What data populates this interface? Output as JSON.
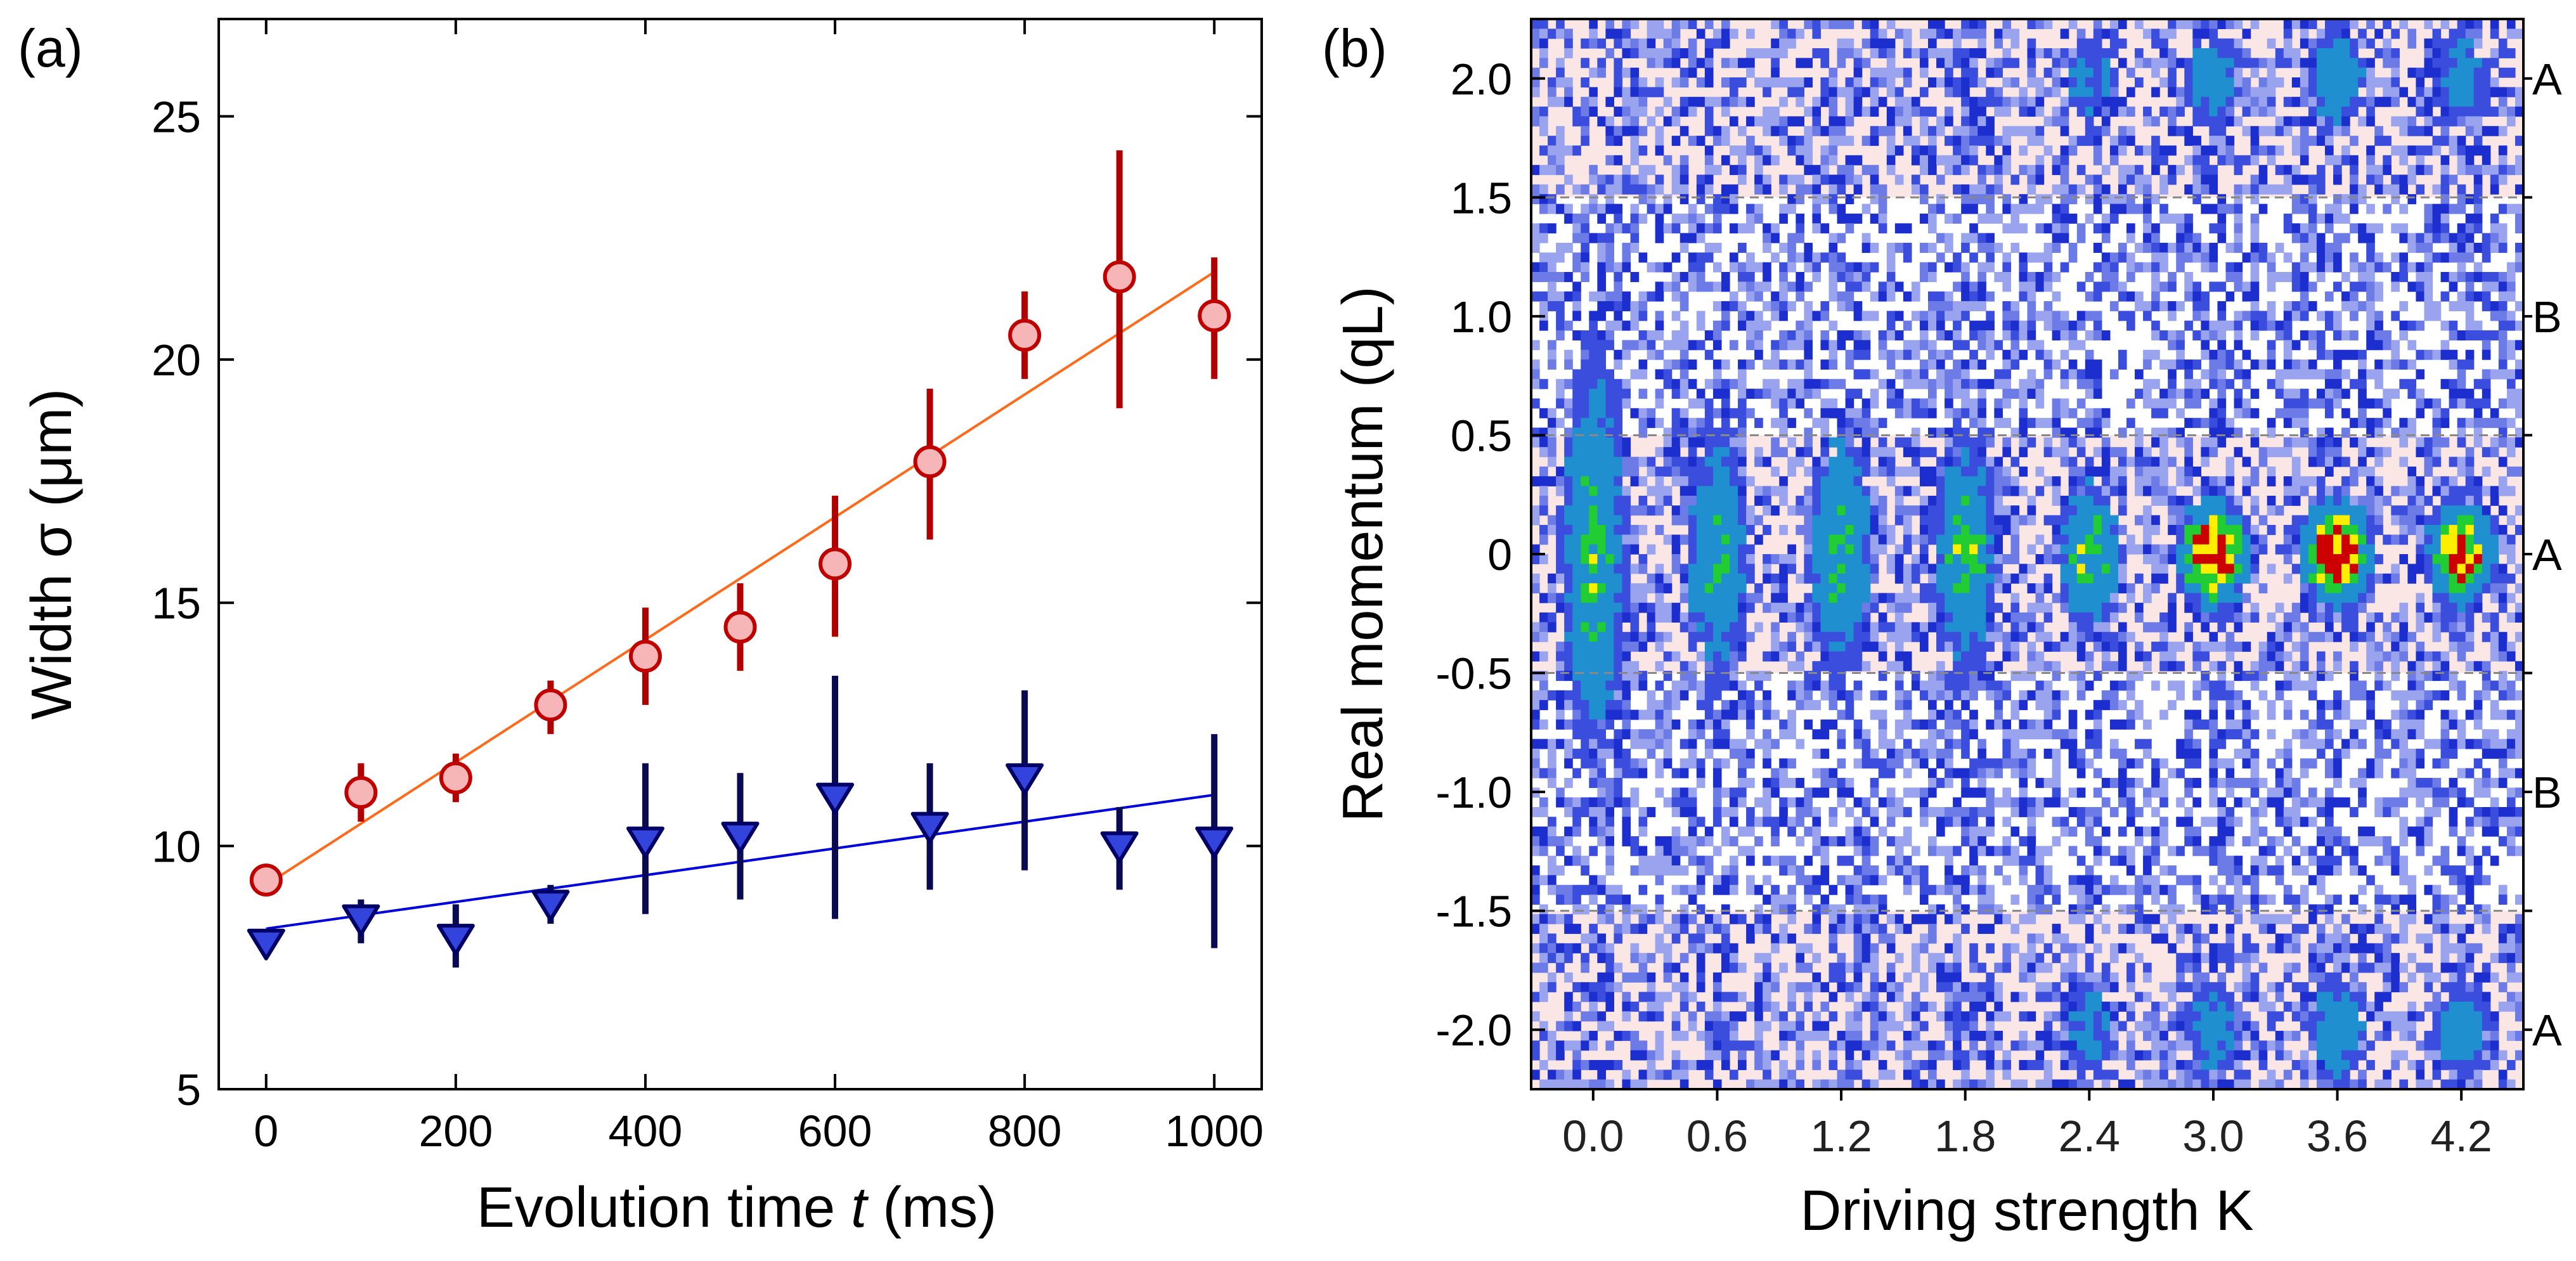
{
  "chart_data": [
    {
      "panel_label": "(a)",
      "type": "scatter",
      "xlabel": {
        "prefix": "Evolution time ",
        "var": "t",
        "suffix": " (ms)"
      },
      "ylabel": "Width σ (μm)",
      "xlim": [
        -50,
        1050
      ],
      "ylim": [
        5,
        27
      ],
      "xticks": [
        0,
        200,
        400,
        600,
        800,
        1000
      ],
      "yticks": [
        5,
        10,
        15,
        20,
        25
      ],
      "series": [
        {
          "name": "circles",
          "marker": "circle",
          "fill": "#f6b6b8",
          "edge": "#c00000",
          "errcolor": "#b00000",
          "x": [
            0,
            100,
            200,
            300,
            400,
            500,
            600,
            700,
            800,
            900,
            1000
          ],
          "y": [
            9.3,
            11.1,
            11.4,
            12.9,
            13.9,
            14.5,
            15.8,
            17.9,
            20.5,
            21.7,
            20.9
          ],
          "err_low": [
            9.1,
            10.5,
            10.9,
            12.3,
            12.9,
            13.6,
            14.3,
            16.3,
            19.6,
            19.0,
            19.6
          ],
          "err_high": [
            9.5,
            11.7,
            11.9,
            13.4,
            14.9,
            15.4,
            17.2,
            19.4,
            21.4,
            24.3,
            22.1
          ],
          "fit": {
            "x": [
              0,
              1000
            ],
            "y": [
              9.2,
              21.8
            ],
            "color": "#ff6a1a"
          }
        },
        {
          "name": "triangles",
          "marker": "triangle-down",
          "fill": "#3344dd",
          "edge": "#000066",
          "errcolor": "#0a0a50",
          "x": [
            0,
            100,
            200,
            300,
            400,
            500,
            600,
            700,
            800,
            900,
            1000
          ],
          "y": [
            8.0,
            8.5,
            8.1,
            8.8,
            10.1,
            10.2,
            11.0,
            10.4,
            11.4,
            10.0,
            10.1
          ],
          "err_low": [
            7.8,
            8.0,
            7.5,
            8.4,
            8.6,
            8.9,
            8.5,
            9.1,
            9.5,
            9.1,
            7.9
          ],
          "err_high": [
            8.2,
            8.9,
            8.8,
            9.2,
            11.7,
            11.5,
            13.5,
            11.7,
            13.2,
            10.8,
            12.3
          ],
          "fit": {
            "x": [
              0,
              1000
            ],
            "y": [
              8.3,
              11.05
            ],
            "color": "#0000dd"
          }
        }
      ]
    },
    {
      "panel_label": "(b)",
      "type": "heatmap",
      "xlabel": "Driving strength K",
      "ylabel": "Real momentum (qL)",
      "xticklabels": [
        "0.0",
        "0.6",
        "1.2",
        "1.8",
        "2.4",
        "3.0",
        "3.6",
        "4.2"
      ],
      "ylim": [
        -2.25,
        2.25
      ],
      "yticks": [
        -2.0,
        -1.5,
        -1.0,
        -0.5,
        0,
        0.5,
        1.0,
        1.5,
        2.0
      ],
      "yticklabels": [
        "-2.0",
        "-1.5",
        "-1.0",
        "-0.5",
        "0",
        "0.5",
        "1.0",
        "1.5",
        "2.0"
      ],
      "region_bounds": [
        -1.5,
        -0.5,
        0.5,
        1.5
      ],
      "regions": [
        {
          "label": "A",
          "momentum": 2.0
        },
        {
          "label": "B",
          "momentum": 1.0
        },
        {
          "label": "A",
          "momentum": 0.0
        },
        {
          "label": "B",
          "momentum": -1.0
        },
        {
          "label": "A",
          "momentum": -2.0
        }
      ],
      "columns": [
        {
          "K": 0.0,
          "center_peak": 0.5,
          "center_width": 0.7,
          "side_peak": 0.0
        },
        {
          "K": 0.6,
          "center_peak": 0.42,
          "center_width": 0.45,
          "side_peak": 0.0
        },
        {
          "K": 1.2,
          "center_peak": 0.45,
          "center_width": 0.45,
          "side_peak": 0.05
        },
        {
          "K": 1.8,
          "center_peak": 0.5,
          "center_width": 0.42,
          "side_peak": 0.1
        },
        {
          "K": 2.4,
          "center_peak": 0.55,
          "center_width": 0.25,
          "side_peak": 0.25
        },
        {
          "K": 3.0,
          "center_peak": 1.0,
          "center_width": 0.18,
          "side_peak": 0.3
        },
        {
          "K": 3.6,
          "center_peak": 1.0,
          "center_width": 0.18,
          "side_peak": 0.35
        },
        {
          "K": 4.2,
          "center_peak": 0.85,
          "center_width": 0.18,
          "side_peak": 0.3
        }
      ],
      "colors": {
        "region_a_bg": "#fbe6e6",
        "region_b_bg": "#ffffff",
        "low": "#3a4ddd",
        "mid": "#22cc33",
        "high": "#ffee00",
        "peak": "#cc0000"
      }
    }
  ]
}
